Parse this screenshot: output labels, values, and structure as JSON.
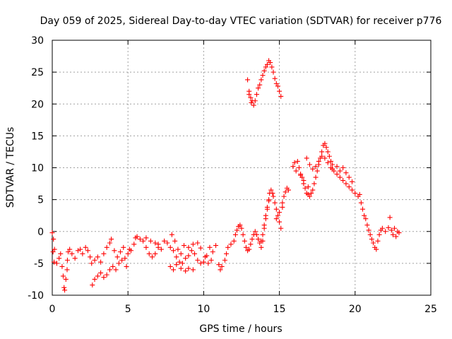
{
  "chart_data": {
    "type": "scatter",
    "title": "Day 059 of 2025, Sidereal Day-to-day VTEC variation (SDTVAR) for receiver p776",
    "xlabel": "GPS time / hours",
    "ylabel": "SDTVAR / TECUs",
    "xlim": [
      0,
      25
    ],
    "ylim": [
      -10,
      30
    ],
    "xticks": [
      0,
      5,
      10,
      15,
      20,
      25
    ],
    "yticks": [
      -10,
      -5,
      0,
      5,
      10,
      15,
      20,
      25,
      30
    ],
    "grid": true,
    "marker": "plus",
    "color": "#ff0000",
    "series": [
      {
        "name": "SDTVAR",
        "points": [
          [
            0.0,
            -0.2
          ],
          [
            0.08,
            -1.2
          ],
          [
            0.15,
            -2.8
          ],
          [
            0.05,
            -3.2
          ],
          [
            0.12,
            -4.8
          ],
          [
            0.3,
            -5.0
          ],
          [
            0.45,
            -4.2
          ],
          [
            0.55,
            -3.5
          ],
          [
            0.65,
            -5.5
          ],
          [
            0.72,
            -7.0
          ],
          [
            0.78,
            -8.8
          ],
          [
            0.82,
            -9.2
          ],
          [
            0.9,
            -7.5
          ],
          [
            0.98,
            -6.0
          ],
          [
            1.0,
            -4.5
          ],
          [
            1.05,
            -3.2
          ],
          [
            1.15,
            -2.8
          ],
          [
            1.3,
            -3.5
          ],
          [
            1.5,
            -4.2
          ],
          [
            1.7,
            -3.0
          ],
          [
            1.85,
            -2.8
          ],
          [
            2.0,
            -3.5
          ],
          [
            2.2,
            -2.5
          ],
          [
            2.35,
            -3.0
          ],
          [
            2.5,
            -4.0
          ],
          [
            2.6,
            -5.0
          ],
          [
            2.65,
            -8.4
          ],
          [
            2.8,
            -7.5
          ],
          [
            3.0,
            -7.0
          ],
          [
            3.2,
            -6.5
          ],
          [
            3.4,
            -7.2
          ],
          [
            3.6,
            -6.8
          ],
          [
            3.8,
            -6.0
          ],
          [
            4.0,
            -5.5
          ],
          [
            4.2,
            -6.0
          ],
          [
            4.4,
            -5.0
          ],
          [
            4.6,
            -4.5
          ],
          [
            4.8,
            -4.2
          ],
          [
            5.0,
            -3.5
          ],
          [
            5.1,
            -2.8
          ],
          [
            2.8,
            -4.5
          ],
          [
            3.0,
            -4.0
          ],
          [
            3.2,
            -4.8
          ],
          [
            3.4,
            -3.5
          ],
          [
            3.6,
            -2.5
          ],
          [
            3.8,
            -1.8
          ],
          [
            3.9,
            -1.2
          ],
          [
            4.1,
            -3.0
          ],
          [
            4.3,
            -4.0
          ],
          [
            4.5,
            -3.2
          ],
          [
            4.7,
            -2.5
          ],
          [
            4.9,
            -5.5
          ],
          [
            5.2,
            -3.0
          ],
          [
            5.4,
            -2.0
          ],
          [
            5.5,
            -1.0
          ],
          [
            5.6,
            -0.8
          ],
          [
            5.8,
            -1.2
          ],
          [
            6.0,
            -1.5
          ],
          [
            6.2,
            -2.5
          ],
          [
            6.4,
            -3.5
          ],
          [
            6.6,
            -4.0
          ],
          [
            6.8,
            -3.5
          ],
          [
            7.0,
            -2.5
          ],
          [
            7.2,
            -2.8
          ],
          [
            7.4,
            -1.5
          ],
          [
            7.6,
            -1.8
          ],
          [
            7.8,
            -2.5
          ],
          [
            8.0,
            -3.0
          ],
          [
            8.2,
            -4.0
          ],
          [
            8.4,
            -4.8
          ],
          [
            8.6,
            -5.0
          ],
          [
            8.8,
            -4.2
          ],
          [
            9.0,
            -3.8
          ],
          [
            9.2,
            -3.0
          ],
          [
            9.4,
            -3.5
          ],
          [
            9.6,
            -4.5
          ],
          [
            9.8,
            -5.0
          ],
          [
            10.0,
            -4.8
          ],
          [
            10.2,
            -3.8
          ],
          [
            10.4,
            -2.5
          ],
          [
            10.6,
            -3.2
          ],
          [
            6.2,
            -1.0
          ],
          [
            6.5,
            -1.5
          ],
          [
            6.8,
            -1.8
          ],
          [
            7.0,
            -2.0
          ],
          [
            7.8,
            -5.5
          ],
          [
            8.0,
            -6.0
          ],
          [
            8.2,
            -5.2
          ],
          [
            8.5,
            -5.8
          ],
          [
            8.8,
            -6.2
          ],
          [
            9.0,
            -5.8
          ],
          [
            9.3,
            -6.0
          ],
          [
            7.9,
            -0.5
          ],
          [
            8.1,
            -1.5
          ],
          [
            8.3,
            -2.8
          ],
          [
            8.5,
            -3.5
          ],
          [
            8.7,
            -2.2
          ],
          [
            9.0,
            -2.5
          ],
          [
            9.3,
            -2.0
          ],
          [
            9.6,
            -1.8
          ],
          [
            9.8,
            -2.6
          ],
          [
            10.1,
            -4.0
          ],
          [
            10.3,
            -5.0
          ],
          [
            10.5,
            -4.5
          ],
          [
            10.8,
            -2.2
          ],
          [
            11.0,
            -5.2
          ],
          [
            11.1,
            -6.0
          ],
          [
            11.2,
            -5.5
          ],
          [
            11.4,
            -4.5
          ],
          [
            11.5,
            -3.5
          ],
          [
            11.6,
            -2.5
          ],
          [
            11.8,
            -2.0
          ],
          [
            12.0,
            -1.5
          ],
          [
            12.1,
            -0.5
          ],
          [
            12.2,
            0.2
          ],
          [
            12.3,
            0.8
          ],
          [
            12.4,
            1.0
          ],
          [
            12.5,
            0.5
          ],
          [
            12.6,
            -0.5
          ],
          [
            12.7,
            -1.5
          ],
          [
            12.8,
            -2.5
          ],
          [
            12.9,
            -3.0
          ],
          [
            13.0,
            -2.8
          ],
          [
            13.1,
            -2.0
          ],
          [
            13.2,
            -1.2
          ],
          [
            13.3,
            -0.5
          ],
          [
            13.4,
            0.0
          ],
          [
            13.5,
            -0.5
          ],
          [
            13.6,
            -1.2
          ],
          [
            13.7,
            -1.8
          ],
          [
            13.8,
            -1.5
          ],
          [
            13.9,
            -0.5
          ],
          [
            14.0,
            1.0
          ],
          [
            14.1,
            2.5
          ],
          [
            14.2,
            3.5
          ],
          [
            14.3,
            5.0
          ],
          [
            14.35,
            6.0
          ],
          [
            14.45,
            6.5
          ],
          [
            14.55,
            6.0
          ],
          [
            14.6,
            5.5
          ],
          [
            14.7,
            4.5
          ],
          [
            14.8,
            3.5
          ],
          [
            14.9,
            2.5
          ],
          [
            15.0,
            1.5
          ],
          [
            15.1,
            0.5
          ],
          [
            13.8,
            -2.5
          ],
          [
            13.9,
            -1.5
          ],
          [
            14.0,
            0.5
          ],
          [
            14.1,
            2.0
          ],
          [
            14.2,
            3.8
          ],
          [
            14.3,
            4.8
          ],
          [
            14.8,
            2.0
          ],
          [
            15.0,
            3.0
          ],
          [
            15.2,
            4.5
          ],
          [
            15.3,
            5.5
          ],
          [
            15.4,
            6.2
          ],
          [
            15.5,
            6.8
          ],
          [
            15.6,
            6.5
          ],
          [
            15.2,
            3.8
          ],
          [
            12.9,
            23.8
          ],
          [
            13.0,
            22.0
          ],
          [
            13.1,
            21.0
          ],
          [
            13.2,
            20.5
          ],
          [
            13.3,
            19.8
          ],
          [
            13.4,
            20.5
          ],
          [
            13.5,
            21.5
          ],
          [
            13.6,
            22.5
          ],
          [
            13.7,
            23.0
          ],
          [
            13.8,
            23.8
          ],
          [
            13.9,
            24.5
          ],
          [
            14.0,
            25.2
          ],
          [
            14.1,
            25.8
          ],
          [
            14.2,
            26.2
          ],
          [
            14.3,
            26.8
          ],
          [
            14.4,
            26.5
          ],
          [
            14.5,
            25.8
          ],
          [
            14.6,
            25.0
          ],
          [
            14.7,
            24.0
          ],
          [
            14.8,
            23.2
          ],
          [
            14.9,
            22.8
          ],
          [
            15.0,
            22.0
          ],
          [
            15.1,
            21.2
          ],
          [
            13.0,
            21.5
          ],
          [
            13.15,
            20.2
          ],
          [
            16.0,
            10.8
          ],
          [
            16.2,
            11.0
          ],
          [
            16.3,
            10.0
          ],
          [
            16.4,
            9.0
          ],
          [
            16.5,
            8.5
          ],
          [
            16.6,
            7.5
          ],
          [
            16.7,
            6.8
          ],
          [
            16.8,
            6.0
          ],
          [
            16.9,
            5.8
          ],
          [
            17.0,
            5.5
          ],
          [
            17.1,
            6.0
          ],
          [
            17.2,
            6.5
          ],
          [
            17.3,
            7.5
          ],
          [
            17.4,
            8.5
          ],
          [
            17.5,
            9.5
          ],
          [
            17.6,
            10.5
          ],
          [
            17.7,
            11.5
          ],
          [
            17.8,
            12.5
          ],
          [
            17.9,
            13.5
          ],
          [
            18.0,
            13.8
          ],
          [
            18.1,
            13.2
          ],
          [
            18.2,
            12.5
          ],
          [
            18.3,
            11.8
          ],
          [
            18.4,
            11.0
          ],
          [
            18.5,
            10.5
          ],
          [
            16.8,
            11.5
          ],
          [
            17.0,
            10.5
          ],
          [
            17.2,
            9.8
          ],
          [
            17.4,
            10.2
          ],
          [
            17.6,
            11.0
          ],
          [
            17.8,
            11.8
          ],
          [
            18.0,
            11.5
          ],
          [
            18.2,
            10.8
          ],
          [
            18.4,
            10.0
          ],
          [
            18.6,
            9.5
          ],
          [
            18.8,
            9.0
          ],
          [
            19.0,
            8.5
          ],
          [
            19.2,
            8.0
          ],
          [
            19.4,
            7.5
          ],
          [
            19.6,
            7.0
          ],
          [
            19.8,
            6.5
          ],
          [
            20.0,
            6.0
          ],
          [
            20.2,
            5.5
          ],
          [
            20.3,
            5.8
          ],
          [
            20.4,
            4.5
          ],
          [
            20.5,
            3.5
          ],
          [
            20.6,
            2.5
          ],
          [
            20.7,
            2.0
          ],
          [
            20.8,
            1.0
          ],
          [
            20.9,
            0.2
          ],
          [
            21.0,
            -0.5
          ],
          [
            21.1,
            -1.2
          ],
          [
            21.2,
            -1.8
          ],
          [
            21.3,
            -2.5
          ],
          [
            21.4,
            -2.8
          ],
          [
            21.5,
            -1.5
          ],
          [
            21.6,
            -0.5
          ],
          [
            21.7,
            0.2
          ],
          [
            21.8,
            0.5
          ],
          [
            22.0,
            0.0
          ],
          [
            22.2,
            0.6
          ],
          [
            22.3,
            2.2
          ],
          [
            22.4,
            0.2
          ],
          [
            22.5,
            -0.5
          ],
          [
            22.6,
            0.5
          ],
          [
            22.7,
            -0.8
          ],
          [
            22.8,
            0.0
          ],
          [
            22.9,
            -0.2
          ],
          [
            18.5,
            9.8
          ],
          [
            18.8,
            10.2
          ],
          [
            19.0,
            9.5
          ],
          [
            19.2,
            10.0
          ],
          [
            19.4,
            9.2
          ],
          [
            19.6,
            8.5
          ],
          [
            19.8,
            7.8
          ],
          [
            16.4,
            8.8
          ],
          [
            16.6,
            8.0
          ],
          [
            16.9,
            7.0
          ],
          [
            15.9,
            10.2
          ],
          [
            16.1,
            9.5
          ]
        ]
      }
    ]
  }
}
